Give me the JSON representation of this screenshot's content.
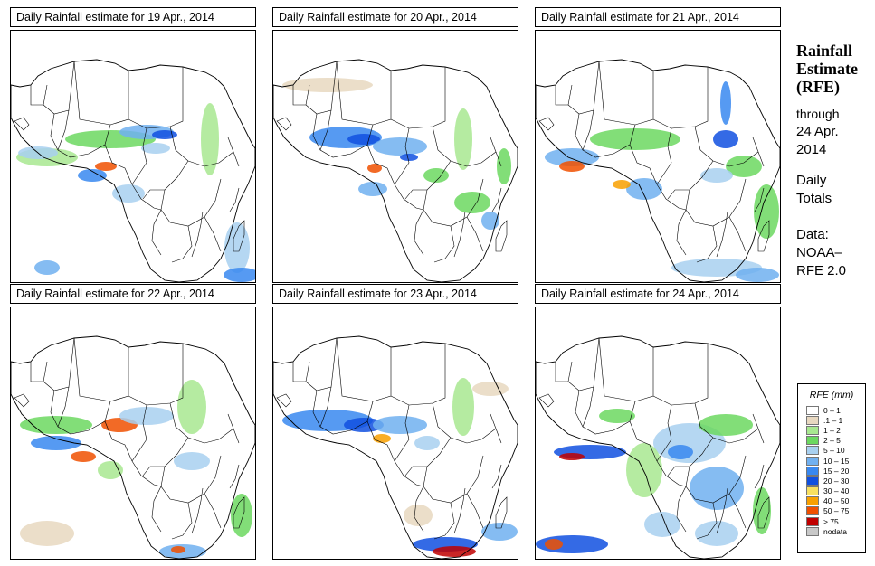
{
  "panels": [
    {
      "title": "Daily Rainfall estimate for  19 Apr., 2014"
    },
    {
      "title": "Daily Rainfall estimate for  20 Apr., 2014"
    },
    {
      "title": "Daily Rainfall estimate for  21 Apr., 2014"
    },
    {
      "title": "Daily Rainfall estimate for  22 Apr., 2014"
    },
    {
      "title": "Daily Rainfall estimate for  23 Apr., 2014"
    },
    {
      "title": "Daily Rainfall estimate for  24 Apr., 2014"
    }
  ],
  "sidebar": {
    "title_lines": [
      "Rainfall",
      "Estimate",
      "(RFE)"
    ],
    "through_lines": [
      "through",
      "24 Apr.",
      "2014"
    ],
    "totals_lines": [
      "Daily",
      "Totals"
    ],
    "source_lines": [
      "Data:",
      "NOAA–",
      "RFE 2.0"
    ]
  },
  "legend": {
    "title": "RFE (mm)",
    "items": [
      {
        "label": "0 – 1",
        "color": "#ffffff"
      },
      {
        "label": ".1 – 1",
        "color": "#e8d8c0"
      },
      {
        "label": "1 – 2",
        "color": "#a8e890"
      },
      {
        "label": "2 – 5",
        "color": "#6cd860"
      },
      {
        "label": "5 – 10",
        "color": "#a8d0f0"
      },
      {
        "label": "10 – 15",
        "color": "#70b0f0"
      },
      {
        "label": "15 – 20",
        "color": "#3888f0"
      },
      {
        "label": "20 – 30",
        "color": "#1050e0"
      },
      {
        "label": "30 – 40",
        "color": "#f8e060"
      },
      {
        "label": "40 – 50",
        "color": "#f8a000"
      },
      {
        "label": "50 – 75",
        "color": "#f05000"
      },
      {
        "label": "> 75",
        "color": "#c00000"
      },
      {
        "label": "nodata",
        "color": "#c8c8c8"
      }
    ]
  }
}
